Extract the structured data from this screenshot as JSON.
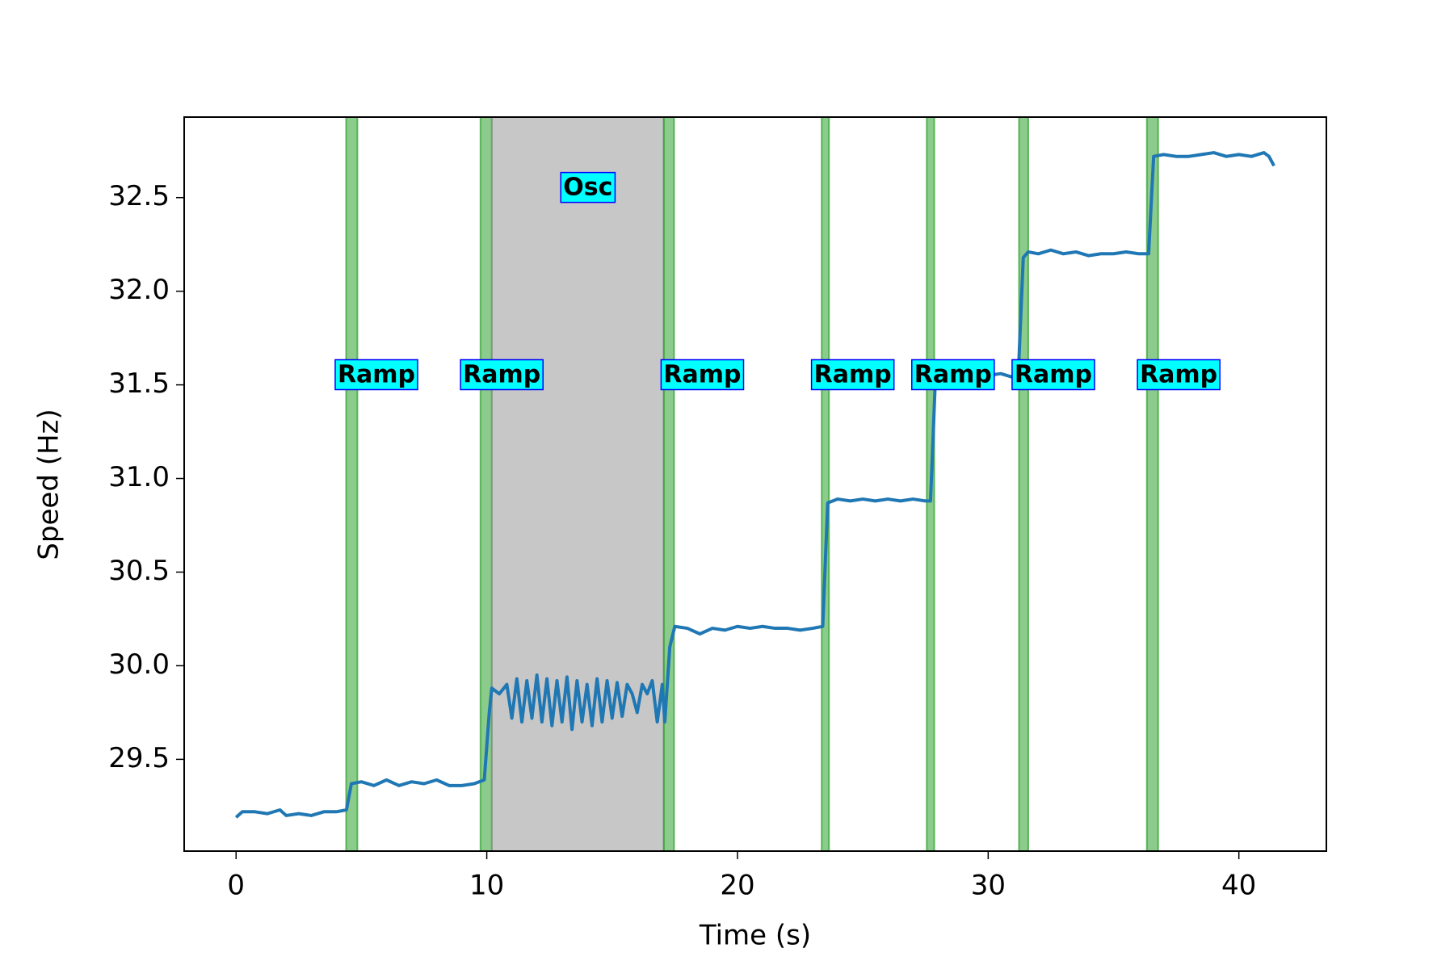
{
  "chart_data": {
    "type": "line",
    "xlabel": "Time (s)",
    "ylabel": "Speed (Hz)",
    "color": "#1f77b4",
    "x": [
      0,
      0.25,
      0.75,
      1.25,
      1.75,
      2.0,
      2.5,
      3.0,
      3.5,
      4.0,
      4.4,
      4.6,
      5.0,
      5.5,
      6.0,
      6.5,
      7.0,
      7.5,
      8.0,
      8.5,
      9.0,
      9.5,
      9.9,
      10.1,
      10.2,
      10.5,
      10.8,
      11.0,
      11.2,
      11.4,
      11.6,
      11.8,
      12.0,
      12.2,
      12.4,
      12.6,
      12.8,
      13.0,
      13.2,
      13.4,
      13.6,
      13.8,
      14.0,
      14.2,
      14.4,
      14.6,
      14.8,
      15.0,
      15.2,
      15.4,
      15.6,
      15.8,
      16.0,
      16.2,
      16.4,
      16.6,
      16.8,
      17.0,
      17.1,
      17.3,
      17.5,
      18.0,
      18.5,
      19.0,
      19.5,
      20.0,
      20.5,
      21.0,
      21.5,
      22.0,
      22.5,
      23.0,
      23.4,
      23.6,
      24.0,
      24.5,
      25.0,
      25.5,
      26.0,
      26.5,
      27.0,
      27.5,
      27.7,
      27.9,
      28.5,
      29.0,
      29.5,
      30.0,
      30.5,
      31.0,
      31.2,
      31.4,
      31.6,
      32.0,
      32.5,
      33.0,
      33.5,
      34.0,
      34.5,
      35.0,
      35.5,
      36.0,
      36.4,
      36.6,
      37.0,
      37.5,
      38.0,
      38.5,
      39.0,
      39.5,
      40.0,
      40.5,
      41.0,
      41.2,
      41.4
    ],
    "values": [
      29.19,
      29.22,
      29.22,
      29.21,
      29.23,
      29.2,
      29.21,
      29.2,
      29.22,
      29.22,
      29.23,
      29.37,
      29.38,
      29.36,
      29.39,
      29.36,
      29.38,
      29.37,
      29.39,
      29.36,
      29.36,
      29.37,
      29.39,
      29.75,
      29.88,
      29.85,
      29.9,
      29.72,
      29.93,
      29.7,
      29.92,
      29.72,
      29.95,
      29.7,
      29.93,
      29.68,
      29.92,
      29.7,
      29.94,
      29.66,
      29.92,
      29.7,
      29.9,
      29.68,
      29.93,
      29.7,
      29.92,
      29.72,
      29.91,
      29.73,
      29.9,
      29.85,
      29.75,
      29.9,
      29.85,
      29.92,
      29.7,
      29.9,
      29.7,
      30.1,
      30.21,
      30.2,
      30.17,
      30.2,
      30.19,
      30.21,
      30.2,
      30.21,
      30.2,
      30.2,
      30.19,
      30.2,
      30.21,
      30.87,
      30.89,
      30.88,
      30.89,
      30.88,
      30.89,
      30.88,
      30.89,
      30.88,
      30.88,
      31.55,
      31.56,
      31.55,
      31.55,
      31.55,
      31.56,
      31.54,
      31.55,
      32.18,
      32.21,
      32.2,
      32.22,
      32.2,
      32.21,
      32.19,
      32.2,
      32.2,
      32.21,
      32.2,
      32.2,
      32.72,
      32.73,
      32.72,
      32.72,
      32.73,
      32.74,
      32.72,
      32.73,
      32.72,
      32.74,
      32.72,
      32.67
    ],
    "xlim": [
      -2.07,
      43.49
    ],
    "xticks": [
      0,
      10,
      20,
      30,
      40
    ],
    "ylim": [
      29.01,
      32.93
    ],
    "yticks": [
      29.5,
      {
        "value": 30,
        "label": "30.0"
      },
      30.5,
      {
        "value": 31,
        "label": "31.0"
      },
      31.5,
      {
        "value": 32,
        "label": "32.0"
      },
      32.5
    ],
    "spans": [
      {
        "start": 4.39,
        "end": 4.84,
        "color": "#2ca02c"
      },
      {
        "start": 9.75,
        "end": 10.2,
        "color": "#2ca02c"
      },
      {
        "start": 10.2,
        "end": 17.06,
        "color": "#909090"
      },
      {
        "start": 17.06,
        "end": 17.47,
        "color": "#2ca02c"
      },
      {
        "start": 23.36,
        "end": 23.65,
        "color": "#2ca02c"
      },
      {
        "start": 27.55,
        "end": 27.85,
        "color": "#2ca02c"
      },
      {
        "start": 31.23,
        "end": 31.6,
        "color": "#2ca02c"
      },
      {
        "start": 36.33,
        "end": 36.78,
        "color": "#2ca02c"
      }
    ],
    "annotations": [
      {
        "text": "Osc",
        "x": 13.05,
        "y": 32.55
      },
      {
        "text": "Ramp",
        "x": 4.05,
        "y": 31.55
      },
      {
        "text": "Ramp",
        "x": 9.05,
        "y": 31.55
      },
      {
        "text": "Ramp",
        "x": 17.05,
        "y": 31.55
      },
      {
        "text": "Ramp",
        "x": 23.05,
        "y": 31.55
      },
      {
        "text": "Ramp",
        "x": 27.05,
        "y": 31.55
      },
      {
        "text": "Ramp",
        "x": 31.05,
        "y": 31.55
      },
      {
        "text": "Ramp",
        "x": 36.05,
        "y": 31.55
      }
    ]
  }
}
